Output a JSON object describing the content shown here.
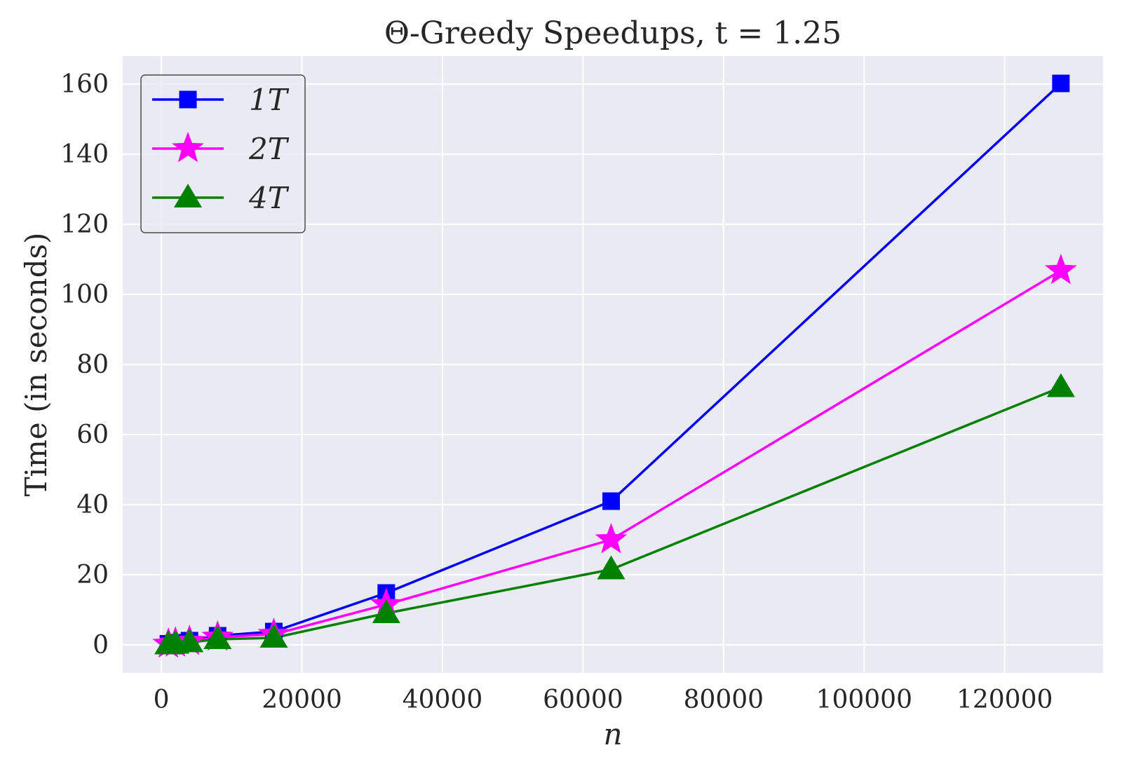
{
  "chart_data": {
    "type": "line",
    "title": "Θ-Greedy Speedups, t = 1.25",
    "xlabel": "n",
    "ylabel": "Time (in seconds)",
    "xlim": [
      -5500,
      134000
    ],
    "ylim": [
      -8,
      168
    ],
    "x_ticks": [
      0,
      20000,
      40000,
      60000,
      80000,
      100000,
      120000
    ],
    "y_ticks": [
      0,
      20,
      40,
      60,
      80,
      100,
      120,
      140,
      160
    ],
    "grid": true,
    "legend_position": "top-left",
    "x": [
      1000,
      2000,
      4000,
      8000,
      16000,
      32000,
      64000,
      128000
    ],
    "series": [
      {
        "name": "1T",
        "color": "#0000ff",
        "marker": "square",
        "values": [
          0.3,
          0.6,
          1.2,
          2.6,
          3.8,
          14.8,
          41.0,
          160.2
        ]
      },
      {
        "name": "2T",
        "color": "#ff00ff",
        "marker": "star",
        "values": [
          0.2,
          0.5,
          1.0,
          2.2,
          3.0,
          11.5,
          30.0,
          106.8
        ]
      },
      {
        "name": "4T",
        "color": "#008000",
        "marker": "triangle",
        "values": [
          0.1,
          0.3,
          0.7,
          1.6,
          2.0,
          9.0,
          21.5,
          73.5
        ]
      }
    ]
  }
}
